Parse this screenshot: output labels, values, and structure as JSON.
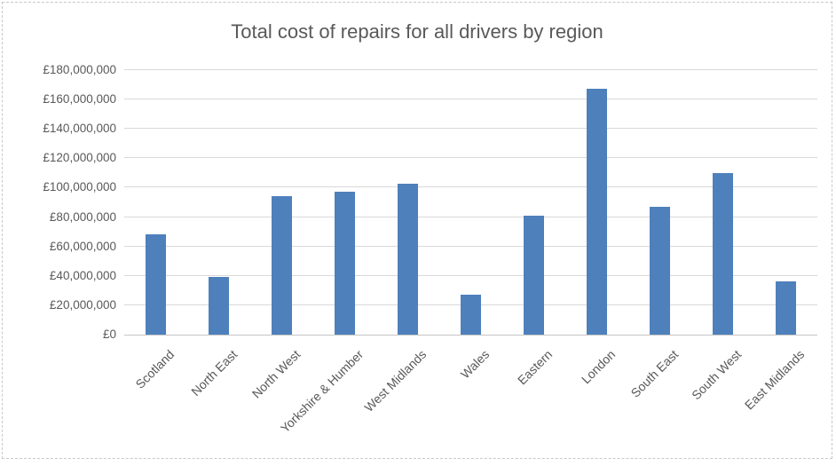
{
  "frame": {
    "border_color": "#c8c8c8",
    "background": "#ffffff"
  },
  "chart_data": {
    "type": "bar",
    "title": "Total cost of repairs for all drivers by region",
    "categories": [
      "Scotland",
      "North East",
      "North West",
      "Yorkshire & Humber",
      "West Midlands",
      "Wales",
      "Eastern",
      "London",
      "South East",
      "South West",
      "East Midlands"
    ],
    "values": [
      68500000,
      39500000,
      94000000,
      97500000,
      102500000,
      27000000,
      81000000,
      167500000,
      87000000,
      110000000,
      36500000
    ],
    "xlabel": "",
    "ylabel": "",
    "ylim": [
      0,
      180000000
    ],
    "ytick_step": 20000000,
    "ytick_labels": [
      "£0",
      "£20,000,000",
      "£40,000,000",
      "£60,000,000",
      "£80,000,000",
      "£100,000,000",
      "£120,000,000",
      "£140,000,000",
      "£160,000,000",
      "£180,000,000"
    ],
    "currency_prefix": "£",
    "grid": true,
    "legend": "none",
    "bar_color": "#4E80BC",
    "gridline_color": "#d9d9d9",
    "text_color": "#595959",
    "x_label_rotation_deg": -45
  }
}
